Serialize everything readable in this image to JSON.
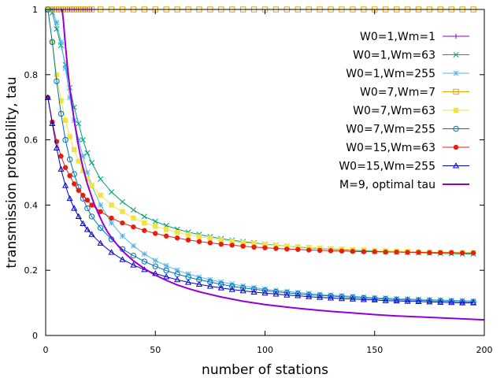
{
  "chart_data": {
    "type": "line",
    "xlabel": "number of stations",
    "ylabel": "transmission probability, tau",
    "xlim": [
      0,
      200
    ],
    "ylim": [
      0,
      1
    ],
    "xticks": [
      0,
      50,
      100,
      150,
      200
    ],
    "yticks": [
      0,
      0.2,
      0.4,
      0.6,
      0.8,
      1
    ],
    "legend_position": "top-right",
    "grid": false,
    "series": [
      {
        "name": "W0=1,Wm=1",
        "color": "#9400d3",
        "marker": "plus",
        "x": [
          1,
          2,
          3,
          4,
          5,
          6,
          7,
          8,
          9,
          10,
          11,
          12,
          13,
          14,
          15,
          16,
          17,
          18,
          19,
          20,
          21
        ],
        "y": [
          1,
          1,
          1,
          1,
          1,
          1,
          1,
          1,
          1,
          1,
          1,
          1,
          1,
          1,
          1,
          1,
          1,
          1,
          1,
          1,
          1
        ]
      },
      {
        "name": "W0=1,Wm=63",
        "color": "#009e73",
        "marker": "x",
        "x": [
          1,
          3,
          5,
          7,
          9,
          11,
          13,
          15,
          17,
          19,
          21,
          25,
          30,
          35,
          40,
          45,
          50,
          55,
          60,
          65,
          70,
          75,
          80,
          85,
          90,
          95,
          100,
          105,
          110,
          115,
          120,
          125,
          130,
          135,
          140,
          145,
          150,
          155,
          160,
          165,
          170,
          175,
          180,
          185,
          190,
          195
        ],
        "y": [
          1,
          0.99,
          0.94,
          0.89,
          0.83,
          0.76,
          0.7,
          0.65,
          0.6,
          0.56,
          0.53,
          0.48,
          0.44,
          0.41,
          0.385,
          0.365,
          0.35,
          0.337,
          0.326,
          0.317,
          0.31,
          0.303,
          0.297,
          0.292,
          0.288,
          0.284,
          0.28,
          0.277,
          0.274,
          0.271,
          0.269,
          0.267,
          0.265,
          0.263,
          0.261,
          0.26,
          0.258,
          0.257,
          0.256,
          0.255,
          0.254,
          0.253,
          0.252,
          0.251,
          0.25,
          0.25
        ]
      },
      {
        "name": "W0=1,Wm=255",
        "color": "#56b4e9",
        "marker": "star",
        "x": [
          1,
          3,
          5,
          7,
          9,
          11,
          13,
          15,
          17,
          19,
          21,
          25,
          30,
          35,
          40,
          45,
          50,
          55,
          60,
          65,
          70,
          75,
          80,
          85,
          90,
          95,
          100,
          105,
          110,
          115,
          120,
          125,
          130,
          135,
          140,
          145,
          150,
          155,
          160,
          165,
          170,
          175,
          180,
          185,
          190,
          195
        ],
        "y": [
          1,
          1,
          0.96,
          0.9,
          0.82,
          0.73,
          0.66,
          0.6,
          0.55,
          0.5,
          0.46,
          0.4,
          0.345,
          0.305,
          0.275,
          0.25,
          0.23,
          0.214,
          0.2,
          0.189,
          0.179,
          0.171,
          0.164,
          0.158,
          0.152,
          0.147,
          0.142,
          0.138,
          0.135,
          0.132,
          0.129,
          0.126,
          0.124,
          0.122,
          0.12,
          0.118,
          0.116,
          0.115,
          0.113,
          0.112,
          0.111,
          0.11,
          0.109,
          0.108,
          0.107,
          0.106
        ]
      },
      {
        "name": "W0=7,Wm=7",
        "color": "#e69f00",
        "marker": "open-square",
        "x": [
          1,
          3,
          5,
          7,
          9,
          11,
          13,
          15,
          17,
          19,
          21,
          25,
          30,
          35,
          40,
          45,
          50,
          55,
          60,
          65,
          70,
          75,
          80,
          85,
          90,
          95,
          100,
          105,
          110,
          115,
          120,
          125,
          130,
          135,
          140,
          145,
          150,
          155,
          160,
          165,
          170,
          175,
          180,
          185,
          190,
          195
        ],
        "y": [
          1,
          1,
          1,
          1,
          1,
          1,
          1,
          1,
          1,
          1,
          1,
          1,
          1,
          1,
          1,
          1,
          1,
          1,
          1,
          1,
          1,
          1,
          1,
          1,
          1,
          1,
          1,
          1,
          1,
          1,
          1,
          1,
          1,
          1,
          1,
          1,
          1,
          1,
          1,
          1,
          1,
          1,
          1,
          1,
          1,
          1
        ]
      },
      {
        "name": "W0=7,Wm=63",
        "color": "#f0e442",
        "marker": "filled-square",
        "x": [
          1,
          3,
          5,
          7,
          9,
          11,
          13,
          15,
          17,
          19,
          21,
          25,
          30,
          35,
          40,
          45,
          50,
          55,
          60,
          65,
          70,
          75,
          80,
          85,
          90,
          95,
          100,
          105,
          110,
          115,
          120,
          125,
          130,
          135,
          140,
          145,
          150,
          155,
          160,
          165,
          170,
          175,
          180,
          185,
          190,
          195
        ],
        "y": [
          1,
          0.9,
          0.8,
          0.72,
          0.66,
          0.61,
          0.57,
          0.535,
          0.505,
          0.48,
          0.46,
          0.43,
          0.4,
          0.38,
          0.36,
          0.345,
          0.335,
          0.325,
          0.316,
          0.309,
          0.303,
          0.298,
          0.293,
          0.289,
          0.285,
          0.282,
          0.279,
          0.276,
          0.274,
          0.272,
          0.27,
          0.268,
          0.266,
          0.265,
          0.263,
          0.262,
          0.261,
          0.26,
          0.259,
          0.258,
          0.257,
          0.256,
          0.255,
          0.255,
          0.254,
          0.254
        ]
      },
      {
        "name": "W0=7,Wm=255",
        "color": "#0072b2",
        "marker": "open-circle",
        "x": [
          1,
          3,
          5,
          7,
          9,
          11,
          13,
          15,
          17,
          19,
          21,
          25,
          30,
          35,
          40,
          45,
          50,
          55,
          60,
          65,
          70,
          75,
          80,
          85,
          90,
          95,
          100,
          105,
          110,
          115,
          120,
          125,
          130,
          135,
          140,
          145,
          150,
          155,
          160,
          165,
          170,
          175,
          180,
          185,
          190,
          195
        ],
        "y": [
          1,
          0.9,
          0.78,
          0.68,
          0.6,
          0.54,
          0.495,
          0.455,
          0.42,
          0.39,
          0.365,
          0.33,
          0.295,
          0.265,
          0.245,
          0.227,
          0.212,
          0.199,
          0.188,
          0.179,
          0.171,
          0.164,
          0.157,
          0.151,
          0.146,
          0.142,
          0.138,
          0.134,
          0.131,
          0.128,
          0.125,
          0.123,
          0.121,
          0.119,
          0.117,
          0.115,
          0.113,
          0.112,
          0.11,
          0.109,
          0.108,
          0.107,
          0.106,
          0.105,
          0.104,
          0.103
        ]
      },
      {
        "name": "W0=15,Wm=63",
        "color": "#e51e10",
        "marker": "filled-circle",
        "x": [
          1,
          3,
          5,
          7,
          9,
          11,
          13,
          15,
          17,
          19,
          21,
          25,
          30,
          35,
          40,
          45,
          50,
          55,
          60,
          65,
          70,
          75,
          80,
          85,
          90,
          95,
          100,
          105,
          110,
          115,
          120,
          125,
          130,
          135,
          140,
          145,
          150,
          155,
          160,
          165,
          170,
          175,
          180,
          185,
          190,
          195
        ],
        "y": [
          0.73,
          0.655,
          0.595,
          0.55,
          0.515,
          0.49,
          0.465,
          0.445,
          0.43,
          0.415,
          0.4,
          0.38,
          0.36,
          0.345,
          0.333,
          0.322,
          0.313,
          0.305,
          0.299,
          0.293,
          0.288,
          0.284,
          0.28,
          0.277,
          0.274,
          0.271,
          0.269,
          0.267,
          0.265,
          0.264,
          0.262,
          0.261,
          0.26,
          0.259,
          0.258,
          0.257,
          0.257,
          0.256,
          0.256,
          0.255,
          0.255,
          0.254,
          0.254,
          0.254,
          0.253,
          0.253
        ]
      },
      {
        "name": "W0=15,Wm=255",
        "color": "#0000cc",
        "marker": "open-triangle",
        "x": [
          1,
          3,
          5,
          7,
          9,
          11,
          13,
          15,
          17,
          19,
          21,
          25,
          30,
          35,
          40,
          45,
          50,
          55,
          60,
          65,
          70,
          75,
          80,
          85,
          90,
          95,
          100,
          105,
          110,
          115,
          120,
          125,
          130,
          135,
          140,
          145,
          150,
          155,
          160,
          165,
          170,
          175,
          180,
          185,
          190,
          195
        ],
        "y": [
          0.73,
          0.65,
          0.575,
          0.51,
          0.46,
          0.42,
          0.39,
          0.365,
          0.343,
          0.325,
          0.31,
          0.283,
          0.255,
          0.233,
          0.216,
          0.202,
          0.19,
          0.18,
          0.171,
          0.163,
          0.157,
          0.151,
          0.146,
          0.141,
          0.137,
          0.133,
          0.13,
          0.127,
          0.124,
          0.122,
          0.119,
          0.117,
          0.115,
          0.113,
          0.112,
          0.11,
          0.109,
          0.107,
          0.106,
          0.105,
          0.104,
          0.103,
          0.102,
          0.101,
          0.1,
          0.1
        ]
      },
      {
        "name": "M=9, optimal tau",
        "color": "#9400d3",
        "marker": "none",
        "x": [
          7.5,
          8,
          9,
          10,
          11,
          12,
          13,
          14,
          15,
          16,
          17,
          18,
          19,
          20,
          22,
          24,
          26,
          28,
          30,
          33,
          36,
          40,
          45,
          50,
          55,
          60,
          65,
          70,
          80,
          90,
          100,
          110,
          120,
          130,
          140,
          150,
          160,
          170,
          180,
          190,
          200
        ],
        "y": [
          1,
          0.97,
          0.89,
          0.82,
          0.76,
          0.71,
          0.66,
          0.62,
          0.58,
          0.545,
          0.515,
          0.49,
          0.465,
          0.445,
          0.405,
          0.375,
          0.345,
          0.32,
          0.3,
          0.275,
          0.253,
          0.229,
          0.205,
          0.185,
          0.169,
          0.155,
          0.144,
          0.134,
          0.118,
          0.105,
          0.095,
          0.087,
          0.08,
          0.074,
          0.069,
          0.064,
          0.06,
          0.057,
          0.054,
          0.051,
          0.048
        ]
      }
    ]
  }
}
